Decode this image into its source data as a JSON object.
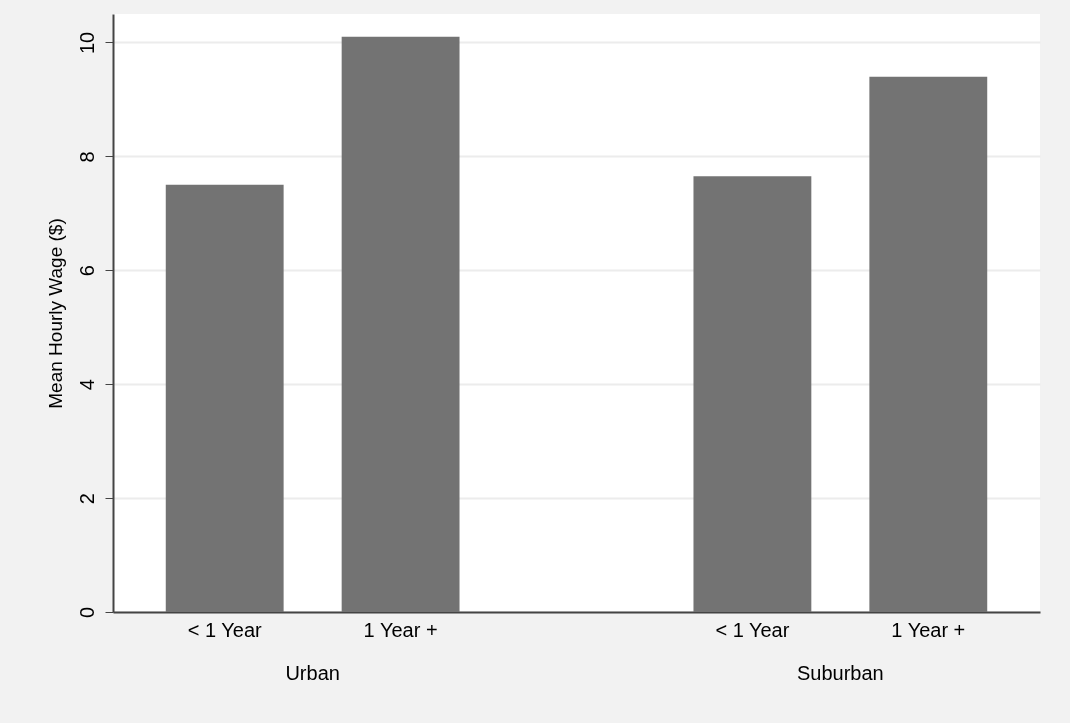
{
  "chart_data": {
    "type": "bar",
    "ylabel": "Mean Hourly Wage ($)",
    "categories": [
      "< 1 Year",
      "1 Year +",
      null,
      "< 1 Year",
      "1 Year +"
    ],
    "values": [
      7.5,
      10.1,
      null,
      7.65,
      9.4
    ],
    "color": "#737373",
    "ylim": [
      0,
      10.5
    ],
    "yticks": [
      0,
      2,
      4,
      6,
      8,
      10
    ],
    "grid": "y",
    "annotations": [
      "Urban",
      "Suburban"
    ]
  }
}
